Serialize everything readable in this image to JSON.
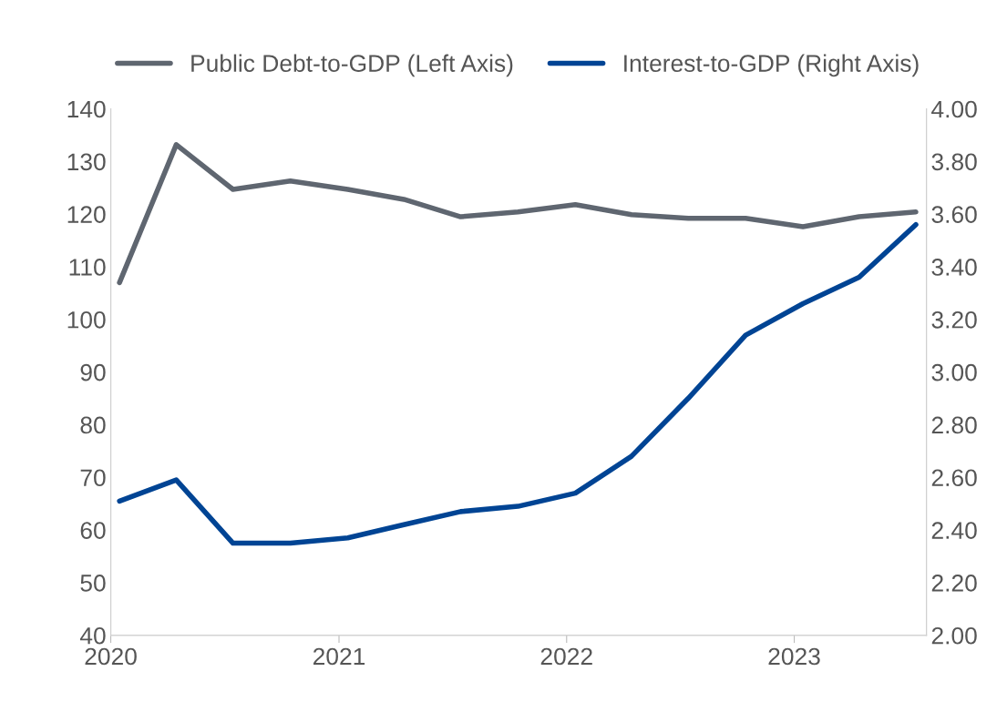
{
  "chart_data": {
    "type": "line",
    "x": [
      "2020-01-15",
      "2020-04-15",
      "2020-07-15",
      "2020-10-15",
      "2021-01-15",
      "2021-04-15",
      "2021-07-15",
      "2021-10-15",
      "2022-01-15",
      "2022-04-15",
      "2022-07-15",
      "2022-10-15",
      "2023-01-15",
      "2023-04-15",
      "2023-07-15"
    ],
    "series": [
      {
        "name": "Public Debt-to-GDP (Left Axis)",
        "color": "#5f6670",
        "values": [
          107,
          133.2,
          124.7,
          126.3,
          124.7,
          122.8,
          119.5,
          120.4,
          121.8,
          119.9,
          119.2,
          119.2,
          117.6,
          119.5,
          120.4
        ]
      },
      {
        "name": "Interest-to-GDP (Right Axis)",
        "color": "#004494",
        "axis": "y2",
        "values": [
          2.51,
          2.59,
          2.35,
          2.35,
          2.37,
          2.42,
          2.47,
          2.49,
          2.54,
          2.68,
          2.9,
          3.14,
          3.26,
          3.36,
          3.56
        ]
      }
    ],
    "xlim": [
      "2020-01-01",
      "2023-08-01"
    ],
    "xticks": [
      {
        "value": "2020-01-01",
        "label": "2020"
      },
      {
        "value": "2021-01-01",
        "label": "2021"
      },
      {
        "value": "2022-01-01",
        "label": "2022"
      },
      {
        "value": "2023-01-01",
        "label": "2023"
      }
    ],
    "ylim": [
      40,
      140
    ],
    "yticks": [
      40,
      50,
      60,
      70,
      80,
      90,
      100,
      110,
      120,
      130,
      140
    ],
    "y2lim": [
      2,
      4
    ],
    "y2ticks": [
      {
        "value": 2,
        "label": "2.00"
      },
      {
        "value": 2.2,
        "label": "2.20"
      },
      {
        "value": 2.4,
        "label": "2.40"
      },
      {
        "value": 2.6,
        "label": "2.60"
      },
      {
        "value": 2.8,
        "label": "2.80"
      },
      {
        "value": 3,
        "label": "3.00"
      },
      {
        "value": 3.2,
        "label": "3.20"
      },
      {
        "value": 3.4,
        "label": "3.40"
      },
      {
        "value": 3.6,
        "label": "3.60"
      },
      {
        "value": 3.8,
        "label": "3.80"
      },
      {
        "value": 4,
        "label": "4.00"
      }
    ],
    "legend": "top",
    "grid": false,
    "marker": "none",
    "line_style": "solid"
  }
}
